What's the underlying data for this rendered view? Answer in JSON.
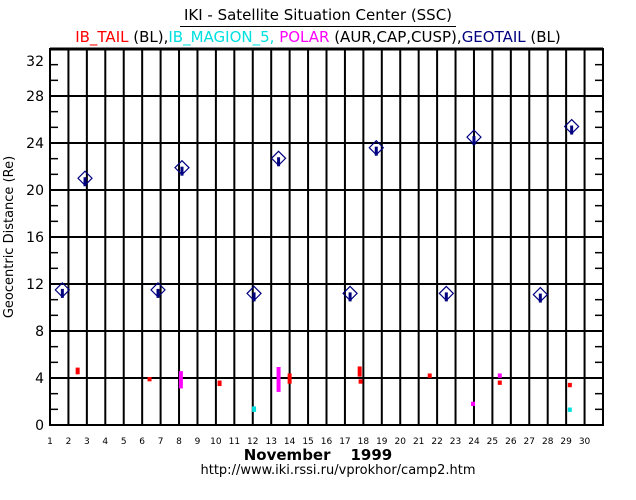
{
  "title": "IKI - Satellite Situation Center (SSC)",
  "legend": [
    {
      "text": "IB_TAIL",
      "color": "#ff0000"
    },
    {
      "text": " (BL),",
      "color": "#000000"
    },
    {
      "text": "IB_MAGION_5, ",
      "color": "#00e0e0"
    },
    {
      "text": "POLAR",
      "color": "#ff00ff"
    },
    {
      "text": " (AUR,CAP,CUSP),",
      "color": "#000000"
    },
    {
      "text": "GEOTAIL",
      "color": "#000080"
    },
    {
      "text": " (BL)",
      "color": "#000000"
    }
  ],
  "month": "November",
  "year": "1999",
  "url": "http://www.iki.rssi.ru/vprokhor/camp2.htm",
  "chart_data": {
    "type": "scatter",
    "title": "IKI - Satellite Situation Center (SSC)",
    "xlabel": "November 1999",
    "ylabel": "Geocentric Distance (Re)",
    "xlim": [
      1,
      31
    ],
    "ylim": [
      0,
      32
    ],
    "x_ticks": [
      1,
      2,
      3,
      4,
      5,
      6,
      7,
      8,
      9,
      10,
      11,
      12,
      13,
      14,
      15,
      16,
      17,
      18,
      19,
      20,
      21,
      22,
      23,
      24,
      25,
      26,
      27,
      28,
      29,
      30
    ],
    "y_ticks": [
      0,
      4,
      8,
      12,
      16,
      20,
      24,
      28,
      32
    ],
    "grid": true,
    "series": [
      {
        "name": "IB_TAIL",
        "color": "#ff0000",
        "marker": "segment",
        "points": [
          [
            2.5,
            4.4,
            4.8
          ],
          [
            6.4,
            3.8,
            4.0
          ],
          [
            10.2,
            3.4,
            3.7
          ],
          [
            14.0,
            3.6,
            4.3
          ],
          [
            17.8,
            4.2,
            4.9
          ],
          [
            17.85,
            3.6,
            3.8
          ],
          [
            21.6,
            4.1,
            4.3
          ],
          [
            25.4,
            3.5,
            3.7
          ],
          [
            29.2,
            3.3,
            3.5
          ]
        ]
      },
      {
        "name": "IB_MAGION_5",
        "color": "#00e0e0",
        "marker": "segment",
        "points": [
          [
            12.07,
            1.2,
            1.5
          ],
          [
            29.2,
            1.2,
            1.4
          ]
        ]
      },
      {
        "name": "POLAR",
        "color": "#ff00ff",
        "marker": "segment",
        "points": [
          [
            8.1,
            3.2,
            4.5
          ],
          [
            13.4,
            2.9,
            4.85
          ],
          [
            23.95,
            1.7,
            1.9
          ],
          [
            25.4,
            4.1,
            4.3
          ]
        ]
      },
      {
        "name": "GEOTAIL",
        "color": "#000080",
        "marker": "diamond-arrow",
        "points": [
          [
            1.67,
            11.5
          ],
          [
            2.9,
            21.0
          ],
          [
            6.86,
            11.5
          ],
          [
            8.16,
            21.9
          ],
          [
            12.07,
            11.2
          ],
          [
            13.4,
            22.7
          ],
          [
            17.28,
            11.2
          ],
          [
            18.7,
            23.6
          ],
          [
            22.5,
            11.2
          ],
          [
            24.0,
            24.5
          ],
          [
            27.6,
            11.1
          ],
          [
            29.3,
            25.4
          ]
        ]
      }
    ]
  }
}
